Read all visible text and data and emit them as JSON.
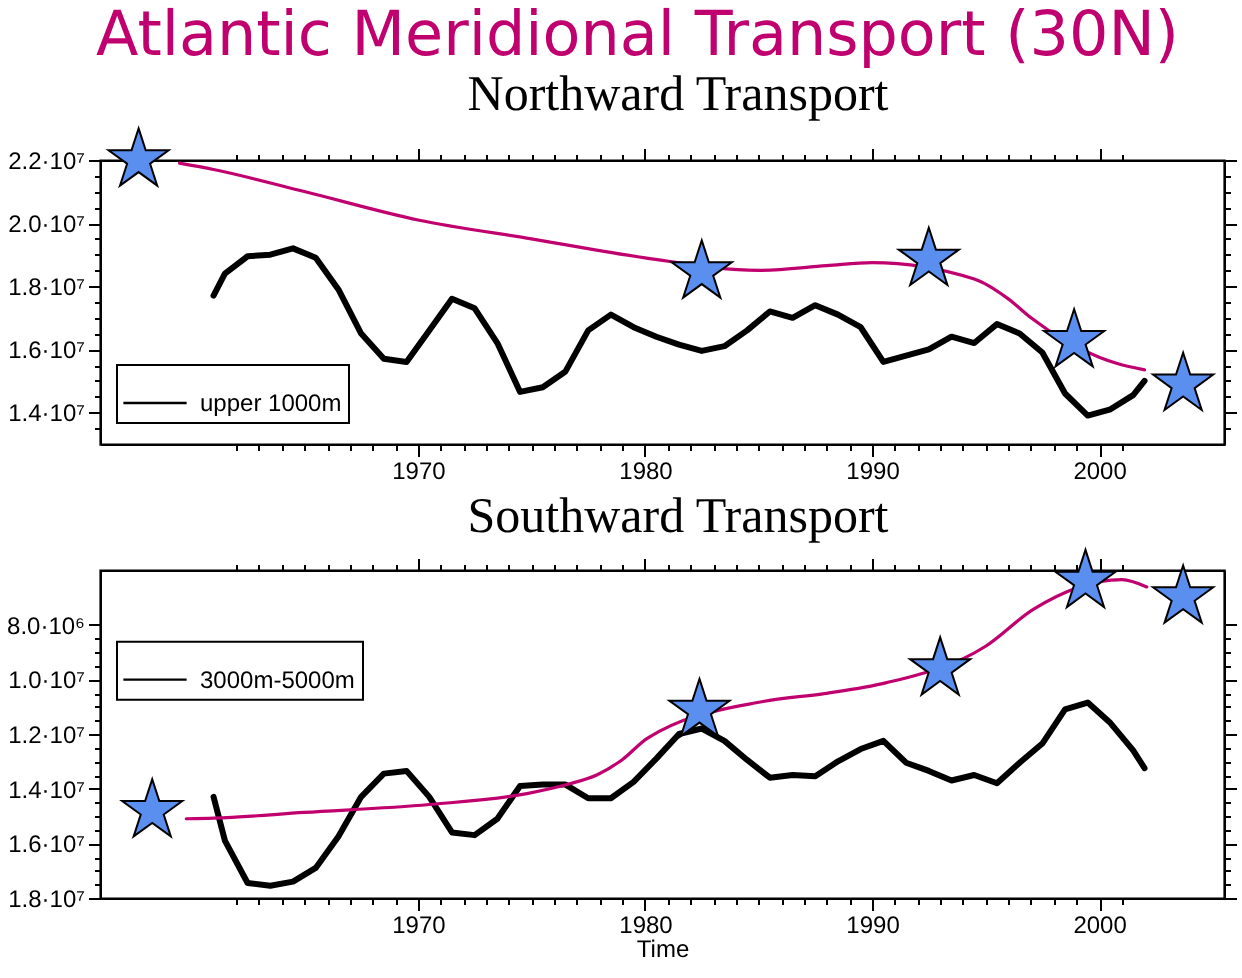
{
  "chart_data": [
    {
      "type": "line",
      "title": "Atlantic Meridional Transport (30N)",
      "subtitle": "Northward Transport",
      "legend": "bottom left",
      "xlim": [
        1956,
        2005.5
      ],
      "xticks": [
        {
          "value": 1962,
          "label": null
        },
        {
          "value": 1963,
          "label": null
        },
        {
          "value": 1964,
          "label": null
        },
        {
          "value": 1965,
          "label": null
        },
        {
          "value": 1966,
          "label": null
        },
        {
          "value": 1967,
          "label": null
        },
        {
          "value": 1968,
          "label": null
        },
        {
          "value": 1969,
          "label": null
        },
        1970,
        {
          "value": 1971,
          "label": null
        },
        {
          "value": 1972,
          "label": null
        },
        {
          "value": 1973,
          "label": null
        },
        {
          "value": 1974,
          "label": null
        },
        {
          "value": 1975,
          "label": null
        },
        {
          "value": 1976,
          "label": null
        },
        {
          "value": 1977,
          "label": null
        },
        {
          "value": 1978,
          "label": null
        },
        {
          "value": 1979,
          "label": null
        },
        1980,
        {
          "value": 1981,
          "label": null
        },
        {
          "value": 1982,
          "label": null
        },
        {
          "value": 1983,
          "label": null
        },
        {
          "value": 1984,
          "label": null
        },
        {
          "value": 1985,
          "label": null
        },
        {
          "value": 1986,
          "label": null
        },
        {
          "value": 1987,
          "label": null
        },
        {
          "value": 1988,
          "label": null
        },
        {
          "value": 1989,
          "label": null
        },
        1990,
        {
          "value": 1991,
          "label": null
        },
        {
          "value": 1992,
          "label": null
        },
        {
          "value": 1993,
          "label": null
        },
        {
          "value": 1994,
          "label": null
        },
        {
          "value": 1995,
          "label": null
        },
        {
          "value": 1996,
          "label": null
        },
        {
          "value": 1997,
          "label": null
        },
        {
          "value": 1998,
          "label": null
        },
        {
          "value": 1999,
          "label": null
        },
        2000,
        {
          "value": 2001,
          "label": null
        }
      ],
      "ylim": [
        13000000,
        22000000
      ],
      "yticks": [
        {
          "value": 13500000,
          "label": null
        },
        {
          "value": 14000000,
          "label": "1.4·10⁷"
        },
        {
          "value": 14500000,
          "label": null
        },
        {
          "value": 15000000,
          "label": null
        },
        {
          "value": 15500000,
          "label": null
        },
        {
          "value": 16000000,
          "label": "1.6·10⁷"
        },
        {
          "value": 16500000,
          "label": null
        },
        {
          "value": 17000000,
          "label": null
        },
        {
          "value": 17500000,
          "label": null
        },
        {
          "value": 18000000,
          "label": "1.8·10⁷"
        },
        {
          "value": 18500000,
          "label": null
        },
        {
          "value": 19000000,
          "label": null
        },
        {
          "value": 19500000,
          "label": null
        },
        {
          "value": 20000000,
          "label": "2.0·10⁷"
        },
        {
          "value": 20500000,
          "label": null
        },
        {
          "value": 21000000,
          "label": null
        },
        {
          "value": 21500000,
          "label": null
        },
        {
          "value": 22000000,
          "label": "2.2·10⁷"
        }
      ],
      "series": [
        {
          "name": "upper 1000m",
          "color": "#000000",
          "x": [
            1961,
            1961.5,
            1962.5,
            1963.5,
            1964.5,
            1965.5,
            1966.5,
            1967.5,
            1968.5,
            1969.5,
            1970.5,
            1971.5,
            1972.5,
            1973.5,
            1974.5,
            1975.5,
            1976.5,
            1977.5,
            1978.5,
            1979.5,
            1980.5,
            1981.5,
            1982.5,
            1983.5,
            1984.5,
            1985.5,
            1986.5,
            1987.5,
            1988.5,
            1989.5,
            1990.5,
            1991.5,
            1992.5,
            1993.5,
            1994.5,
            1995.5,
            1996.5,
            1997.5,
            1998.5,
            1999.5,
            2000.5,
            2001.5,
            2002
          ],
          "values": [
            17700000,
            18400000,
            18950000,
            19000000,
            19200000,
            18900000,
            17900000,
            16500000,
            15700000,
            15600000,
            16600000,
            17600000,
            17300000,
            16200000,
            14650000,
            14800000,
            15300000,
            16600000,
            17100000,
            16700000,
            16400000,
            16150000,
            15950000,
            16100000,
            16600000,
            17200000,
            17000000,
            17400000,
            17100000,
            16700000,
            15600000,
            15800000,
            16000000,
            16400000,
            16200000,
            16800000,
            16500000,
            15900000,
            14600000,
            13900000,
            14100000,
            14550000,
            15000000
          ]
        },
        {
          "color": "#c0006f",
          "x": [
            1959.5,
            1961,
            1965,
            1970,
            1975,
            1980,
            1985,
            1988,
            1990,
            1994.5,
            1996,
            1997,
            2000,
            2000.8,
            2002
          ],
          "values": [
            21900000,
            21700000,
            21000000,
            20100000,
            19500000,
            18900000,
            18500000,
            18650000,
            18750000,
            18230000,
            17600000,
            17000000,
            15750000,
            15550000,
            15350000
          ]
        },
        {
          "type": "scatter",
          "marker": "star",
          "color": "#5a8ff0",
          "x": [
            1957.7,
            1982.5,
            1992.5,
            1998.9,
            2003.7
          ],
          "values": [
            22000000,
            18450000,
            18850000,
            16270000,
            14890000
          ]
        }
      ]
    },
    {
      "type": "line",
      "title": "Southward Transport",
      "xlabel": "Time",
      "legend": "top left",
      "xlim": [
        1956,
        2005.5
      ],
      "xticks": [
        {
          "value": 1962,
          "label": null
        },
        {
          "value": 1963,
          "label": null
        },
        {
          "value": 1964,
          "label": null
        },
        {
          "value": 1965,
          "label": null
        },
        {
          "value": 1966,
          "label": null
        },
        {
          "value": 1967,
          "label": null
        },
        {
          "value": 1968,
          "label": null
        },
        {
          "value": 1969,
          "label": null
        },
        1970,
        {
          "value": 1971,
          "label": null
        },
        {
          "value": 1972,
          "label": null
        },
        {
          "value": 1973,
          "label": null
        },
        {
          "value": 1974,
          "label": null
        },
        {
          "value": 1975,
          "label": null
        },
        {
          "value": 1976,
          "label": null
        },
        {
          "value": 1977,
          "label": null
        },
        {
          "value": 1978,
          "label": null
        },
        {
          "value": 1979,
          "label": null
        },
        1980,
        {
          "value": 1981,
          "label": null
        },
        {
          "value": 1982,
          "label": null
        },
        {
          "value": 1983,
          "label": null
        },
        {
          "value": 1984,
          "label": null
        },
        {
          "value": 1985,
          "label": null
        },
        {
          "value": 1986,
          "label": null
        },
        {
          "value": 1987,
          "label": null
        },
        {
          "value": 1988,
          "label": null
        },
        {
          "value": 1989,
          "label": null
        },
        1990,
        {
          "value": 1991,
          "label": null
        },
        {
          "value": 1992,
          "label": null
        },
        {
          "value": 1993,
          "label": null
        },
        {
          "value": 1994,
          "label": null
        },
        {
          "value": 1995,
          "label": null
        },
        {
          "value": 1996,
          "label": null
        },
        {
          "value": 1997,
          "label": null
        },
        {
          "value": 1998,
          "label": null
        },
        {
          "value": 1999,
          "label": null
        },
        2000,
        {
          "value": 2001,
          "label": null
        }
      ],
      "ylim": [
        18000000,
        6000000
      ],
      "yticks": [
        {
          "value": 8000000,
          "label": "8.0·10⁶"
        },
        {
          "value": 8500000,
          "label": null
        },
        {
          "value": 9000000,
          "label": null
        },
        {
          "value": 9500000,
          "label": null
        },
        {
          "value": 10000000,
          "label": "1.0·10⁷"
        },
        {
          "value": 10500000,
          "label": null
        },
        {
          "value": 11000000,
          "label": null
        },
        {
          "value": 11500000,
          "label": null
        },
        {
          "value": 12000000,
          "label": "1.2·10⁷"
        },
        {
          "value": 12500000,
          "label": null
        },
        {
          "value": 13000000,
          "label": null
        },
        {
          "value": 13500000,
          "label": null
        },
        {
          "value": 14000000,
          "label": "1.4·10⁷"
        },
        {
          "value": 14500000,
          "label": null
        },
        {
          "value": 15000000,
          "label": null
        },
        {
          "value": 15500000,
          "label": null
        },
        {
          "value": 16000000,
          "label": "1.6·10⁷"
        },
        {
          "value": 16500000,
          "label": null
        },
        {
          "value": 17000000,
          "label": null
        },
        {
          "value": 17500000,
          "label": null
        },
        {
          "value": 18000000,
          "label": "1.8·10⁷"
        }
      ],
      "series": [
        {
          "name": "3000m-5000m",
          "color": "#000000",
          "x": [
            1961,
            1961.5,
            1962.5,
            1963.5,
            1964.5,
            1965.5,
            1966.5,
            1967.5,
            1968.5,
            1969.5,
            1970.5,
            1971.5,
            1972.5,
            1973.5,
            1974.5,
            1975.5,
            1976.5,
            1977.5,
            1978.5,
            1979.5,
            1980.5,
            1981.5,
            1982.5,
            1983.5,
            1984.5,
            1985.5,
            1986.5,
            1987.5,
            1988.5,
            1989.5,
            1990.5,
            1991.5,
            1992.5,
            1993.5,
            1994.5,
            1995.5,
            1996.5,
            1997.5,
            1998.5,
            1999.5,
            2000.5,
            2001.5,
            2002
          ],
          "values": [
            14300000,
            15900000,
            17450000,
            17550000,
            17400000,
            16900000,
            15750000,
            14300000,
            13450000,
            13350000,
            14300000,
            15600000,
            15700000,
            15100000,
            13900000,
            13850000,
            13850000,
            14350000,
            14350000,
            13750000,
            12900000,
            12000000,
            11800000,
            12250000,
            12950000,
            13600000,
            13500000,
            13550000,
            13000000,
            12550000,
            12250000,
            13050000,
            13350000,
            13700000,
            13500000,
            13800000,
            13050000,
            12350000,
            11100000,
            10850000,
            11600000,
            12600000,
            13250000
          ]
        },
        {
          "color": "#c0006f",
          "x": [
            1959.8,
            1961,
            1965,
            1970.5,
            1974.8,
            1976.6,
            1977.9,
            1979,
            1980.1,
            1985.2,
            1987.9,
            1990.6,
            1995,
            1997.1,
            2001,
            2002.1
          ],
          "values": [
            15100000,
            15080000,
            14870000,
            14580000,
            14180000,
            13840000,
            13490000,
            12940000,
            12160000,
            10810000,
            10520000,
            10130000,
            8790000,
            7440000,
            6350000,
            6620000
          ]
        },
        {
          "type": "scatter",
          "marker": "star",
          "color": "#5a8ff0",
          "x": [
            1958.3,
            1982.4,
            1993,
            1999.4,
            2003.7
          ],
          "values": [
            14810000,
            11140000,
            9620000,
            6420000,
            6990000
          ]
        }
      ]
    }
  ]
}
